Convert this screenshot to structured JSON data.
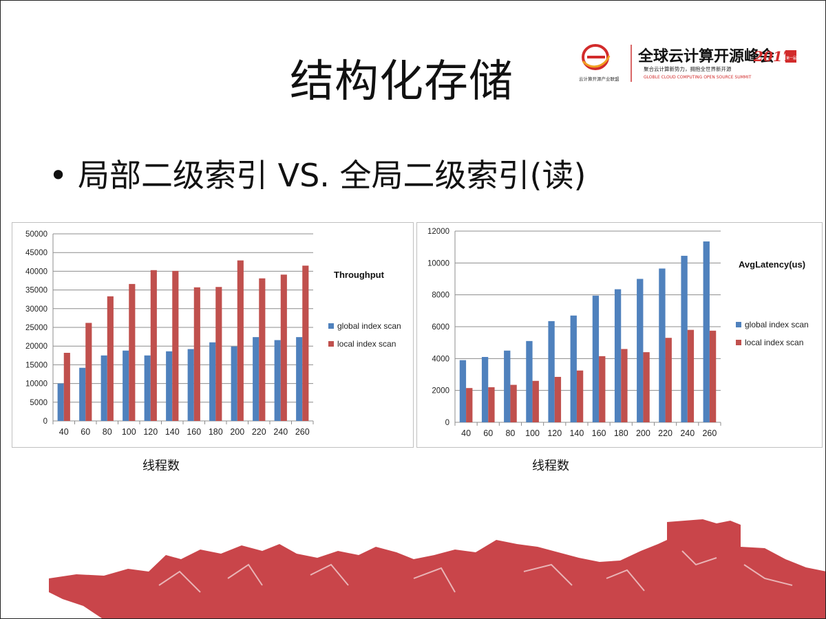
{
  "slide": {
    "title": "结构化存储",
    "bullet": "局部二级索引 VS. 全局二级索引(读)"
  },
  "logo": {
    "caption_small": "云计算开源产业联盟",
    "brand": "全球云计算开源峰会",
    "year": "2017",
    "badge": "第一届",
    "slogan": "聚合云计算新势力，拥抱全世界新开源",
    "english": "GLOBLE CLOUD COMPUTING OPEN SOURCE SUMMIT"
  },
  "colors": {
    "blue": "#4F81BD",
    "red": "#C0504D",
    "grid": "#868686",
    "footer": "#C9454A"
  },
  "chart_data": [
    {
      "type": "bar",
      "title": "Throughput",
      "xlabel": "线程数",
      "ylabel": "",
      "ylim": [
        0,
        50000
      ],
      "yticks": [
        0,
        5000,
        10000,
        15000,
        20000,
        25000,
        30000,
        35000,
        40000,
        45000,
        50000
      ],
      "legend_position": "right",
      "categories": [
        "40",
        "60",
        "80",
        "100",
        "120",
        "140",
        "160",
        "180",
        "200",
        "220",
        "240",
        "260"
      ],
      "series": [
        {
          "name": "global index scan",
          "color": "#4F81BD",
          "values": [
            10000,
            14200,
            17500,
            18800,
            17500,
            18600,
            19200,
            21000,
            19900,
            22400,
            21600,
            22400
          ]
        },
        {
          "name": "local index scan",
          "color": "#C0504D",
          "values": [
            18200,
            26200,
            33300,
            36600,
            40300,
            40100,
            35700,
            35800,
            42900,
            38100,
            39100,
            41500
          ]
        }
      ]
    },
    {
      "type": "bar",
      "title": "AvgLatency(us)",
      "xlabel": "线程数",
      "ylabel": "",
      "ylim": [
        0,
        12000
      ],
      "yticks": [
        0,
        2000,
        4000,
        6000,
        8000,
        10000,
        12000
      ],
      "legend_position": "right",
      "categories": [
        "40",
        "60",
        "80",
        "100",
        "120",
        "140",
        "160",
        "180",
        "200",
        "220",
        "240",
        "260"
      ],
      "series": [
        {
          "name": "global index scan",
          "color": "#4F81BD",
          "values": [
            3900,
            4100,
            4500,
            5100,
            6350,
            6700,
            7950,
            8350,
            9000,
            9650,
            10450,
            11350
          ]
        },
        {
          "name": "local index scan",
          "color": "#C0504D",
          "values": [
            2150,
            2200,
            2350,
            2600,
            2850,
            3250,
            4150,
            4600,
            4400,
            5300,
            5800,
            5750
          ]
        }
      ]
    }
  ]
}
